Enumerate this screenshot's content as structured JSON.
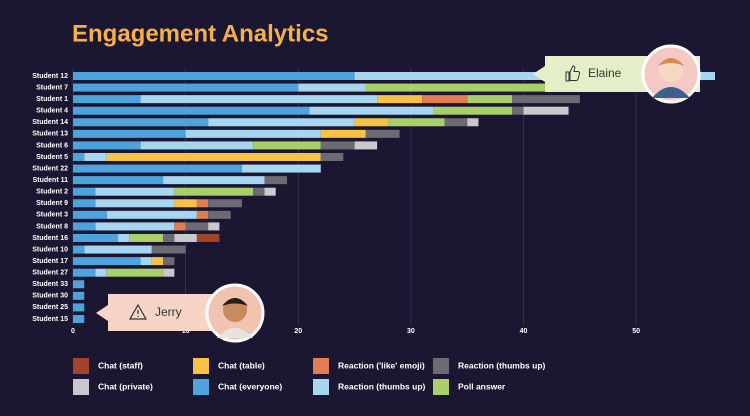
{
  "chart_data": {
    "type": "stacked-hbar",
    "title": "Engagement Analytics",
    "categories": [
      "Student 12",
      "Student 7",
      "Student 1",
      "Student 4",
      "Student 14",
      "Student 13",
      "Student 6",
      "Student 5",
      "Student 22",
      "Student 11",
      "Student 2",
      "Student 9",
      "Student 3",
      "Student 8",
      "Student 16",
      "Student 10",
      "Student 17",
      "Student 27",
      "Student 33",
      "Student 30",
      "Student 25",
      "Student 15"
    ],
    "series": [
      {
        "name": "Chat (everyone)",
        "color": "#4fa3dc",
        "values": [
          25,
          20,
          6,
          21,
          12,
          10,
          6,
          1,
          15,
          8,
          2,
          2,
          3,
          2,
          4,
          1,
          6,
          2,
          1,
          1,
          1,
          1
        ]
      },
      {
        "name": "Reaction (thumbs up)",
        "color": "#a7d6f1",
        "values": [
          32,
          6,
          21,
          11,
          13,
          12,
          10,
          2,
          7,
          9,
          7,
          7,
          8,
          7,
          1,
          6,
          1,
          1,
          0,
          0,
          0,
          0
        ]
      },
      {
        "name": "Chat (table)",
        "color": "#f7c245",
        "values": [
          0,
          0,
          4,
          0,
          3,
          4,
          0,
          19,
          0,
          0,
          0,
          2,
          0,
          0,
          0,
          0,
          1,
          0,
          0,
          0,
          0,
          0
        ]
      },
      {
        "name": "Reaction ('like' emoji)",
        "color": "#e17d50",
        "values": [
          0,
          0,
          4,
          0,
          0,
          0,
          0,
          0,
          0,
          0,
          0,
          1,
          1,
          1,
          0,
          0,
          0,
          0,
          0,
          0,
          0,
          0
        ]
      },
      {
        "name": "Poll answer",
        "color": "#a9cf6b",
        "values": [
          0,
          16,
          4,
          7,
          5,
          0,
          6,
          0,
          0,
          0,
          7,
          0,
          0,
          0,
          3,
          0,
          0,
          5,
          0,
          0,
          0,
          0
        ]
      },
      {
        "name": "Reaction (thumbs up)",
        "color": "#6c6b74",
        "values": [
          0,
          0,
          6,
          1,
          2,
          3,
          3,
          2,
          0,
          2,
          1,
          3,
          2,
          2,
          1,
          3,
          1,
          0,
          0,
          0,
          0,
          0
        ]
      },
      {
        "name": "Chat (private)",
        "color": "#c9c8cd",
        "values": [
          0,
          0,
          0,
          4,
          1,
          0,
          2,
          0,
          0,
          0,
          1,
          0,
          0,
          1,
          2,
          0,
          0,
          1,
          0,
          0,
          0,
          0
        ]
      },
      {
        "name": "Chat (staff)",
        "color": "#a3432a",
        "values": [
          0,
          0,
          0,
          0,
          0,
          0,
          0,
          0,
          0,
          0,
          0,
          0,
          0,
          0,
          2,
          0,
          0,
          0,
          0,
          0,
          0,
          0
        ]
      }
    ],
    "xlim": [
      0,
      57
    ],
    "xticks": [
      0,
      10,
      20,
      30,
      40,
      50
    ],
    "grid": true,
    "annotations": [
      "Elaine",
      "Jerry"
    ]
  }
}
